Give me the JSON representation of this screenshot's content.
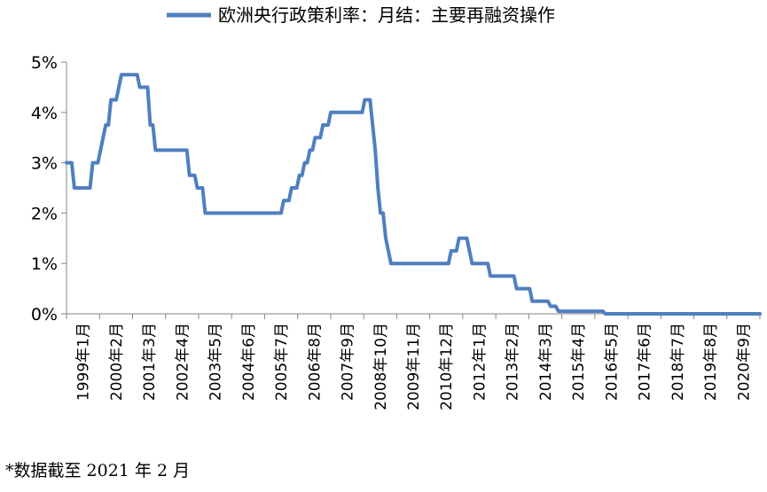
{
  "chart_data": {
    "type": "line",
    "title": "",
    "xlabel": "",
    "ylabel": "",
    "ylim": [
      0,
      5
    ],
    "yticks": [
      "0%",
      "1%",
      "2%",
      "3%",
      "4%",
      "5%"
    ],
    "x_tick_labels": [
      "1999年1月",
      "2000年2月",
      "2001年3月",
      "2002年4月",
      "2003年5月",
      "2004年6月",
      "2005年7月",
      "2006年8月",
      "2007年9月",
      "2008年10月",
      "2009年11月",
      "2010年12月",
      "2012年1月",
      "2013年2月",
      "2014年3月",
      "2015年4月",
      "2016年5月",
      "2017年6月",
      "2018年7月",
      "2019年8月",
      "2020年9月"
    ],
    "x_range": [
      "1999-01",
      "2021-02"
    ],
    "legend_position": "top",
    "grid": false,
    "series": [
      {
        "name": "欧洲央行政策利率：月结：主要再融资操作",
        "color": "#4F7FC0",
        "points": [
          [
            "1999-01",
            3.0
          ],
          [
            "1999-03",
            3.0
          ],
          [
            "1999-04",
            2.5
          ],
          [
            "1999-10",
            2.5
          ],
          [
            "1999-11",
            3.0
          ],
          [
            "2000-01",
            3.0
          ],
          [
            "2000-02",
            3.25
          ],
          [
            "2000-03",
            3.5
          ],
          [
            "2000-04",
            3.75
          ],
          [
            "2000-05",
            3.75
          ],
          [
            "2000-06",
            4.25
          ],
          [
            "2000-08",
            4.25
          ],
          [
            "2000-09",
            4.5
          ],
          [
            "2000-10",
            4.75
          ],
          [
            "2001-04",
            4.75
          ],
          [
            "2001-05",
            4.5
          ],
          [
            "2001-08",
            4.5
          ],
          [
            "2001-09",
            3.75
          ],
          [
            "2001-10",
            3.75
          ],
          [
            "2001-11",
            3.25
          ],
          [
            "2002-11",
            3.25
          ],
          [
            "2002-12",
            2.75
          ],
          [
            "2003-02",
            2.75
          ],
          [
            "2003-03",
            2.5
          ],
          [
            "2003-05",
            2.5
          ],
          [
            "2003-06",
            2.0
          ],
          [
            "2005-11",
            2.0
          ],
          [
            "2005-12",
            2.25
          ],
          [
            "2006-02",
            2.25
          ],
          [
            "2006-03",
            2.5
          ],
          [
            "2006-05",
            2.5
          ],
          [
            "2006-06",
            2.75
          ],
          [
            "2006-07",
            2.75
          ],
          [
            "2006-08",
            3.0
          ],
          [
            "2006-09",
            3.0
          ],
          [
            "2006-10",
            3.25
          ],
          [
            "2006-11",
            3.25
          ],
          [
            "2006-12",
            3.5
          ],
          [
            "2007-02",
            3.5
          ],
          [
            "2007-03",
            3.75
          ],
          [
            "2007-05",
            3.75
          ],
          [
            "2007-06",
            4.0
          ],
          [
            "2008-06",
            4.0
          ],
          [
            "2008-07",
            4.25
          ],
          [
            "2008-09",
            4.25
          ],
          [
            "2008-10",
            3.75
          ],
          [
            "2008-11",
            3.25
          ],
          [
            "2008-12",
            2.5
          ],
          [
            "2009-01",
            2.0
          ],
          [
            "2009-02",
            2.0
          ],
          [
            "2009-03",
            1.5
          ],
          [
            "2009-04",
            1.25
          ],
          [
            "2009-05",
            1.0
          ],
          [
            "2011-03",
            1.0
          ],
          [
            "2011-04",
            1.25
          ],
          [
            "2011-06",
            1.25
          ],
          [
            "2011-07",
            1.5
          ],
          [
            "2011-10",
            1.5
          ],
          [
            "2011-11",
            1.25
          ],
          [
            "2011-12",
            1.0
          ],
          [
            "2012-06",
            1.0
          ],
          [
            "2012-07",
            0.75
          ],
          [
            "2013-04",
            0.75
          ],
          [
            "2013-05",
            0.5
          ],
          [
            "2013-10",
            0.5
          ],
          [
            "2013-11",
            0.25
          ],
          [
            "2014-05",
            0.25
          ],
          [
            "2014-06",
            0.15
          ],
          [
            "2014-08",
            0.15
          ],
          [
            "2014-09",
            0.05
          ],
          [
            "2016-02",
            0.05
          ],
          [
            "2016-03",
            0.0
          ],
          [
            "2021-02",
            0.0
          ]
        ]
      }
    ]
  },
  "footnote": "*数据截至 2021 年 2 月"
}
